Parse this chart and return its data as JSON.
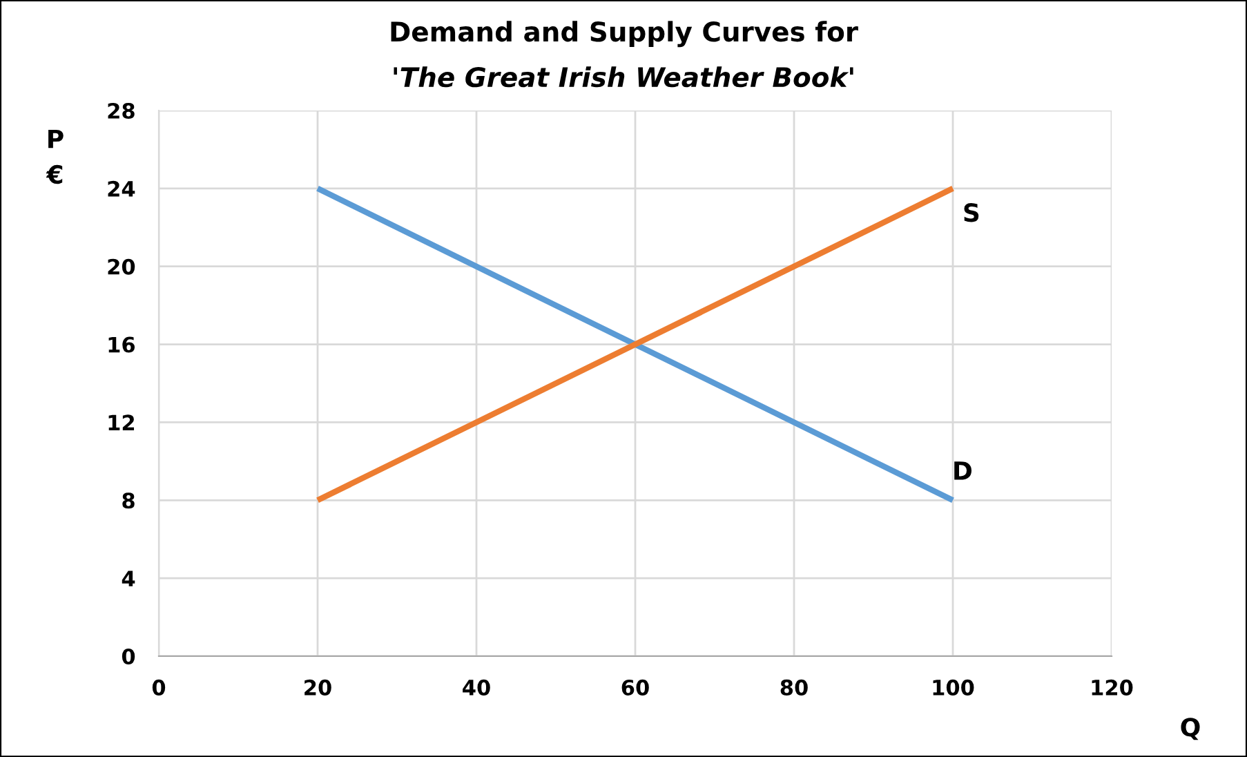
{
  "chart_data": {
    "type": "line",
    "title": "Demand and Supply Curves for",
    "subtitle": "'The Great Irish Weather Book'",
    "xlabel": "Q",
    "ylabel": "P\n€",
    "x": [
      20,
      100
    ],
    "series": [
      {
        "name": "D",
        "color": "#5b9bd5",
        "values": [
          24,
          8
        ]
      },
      {
        "name": "S",
        "color": "#ed7d31",
        "values": [
          8,
          24
        ]
      }
    ],
    "xlim": [
      0,
      120
    ],
    "xticks": [
      0,
      20,
      40,
      60,
      80,
      100,
      120
    ],
    "ylim": [
      0,
      28
    ],
    "yticks": [
      0,
      4,
      8,
      12,
      16,
      20,
      24,
      28
    ],
    "grid": true,
    "legend": false,
    "marker": "none",
    "line_style": "solid"
  }
}
